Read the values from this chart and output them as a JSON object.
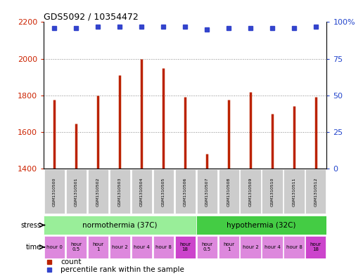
{
  "title": "GDS5092 / 10354472",
  "samples": [
    "GSM1310500",
    "GSM1310501",
    "GSM1310502",
    "GSM1310503",
    "GSM1310504",
    "GSM1310505",
    "GSM1310506",
    "GSM1310507",
    "GSM1310508",
    "GSM1310509",
    "GSM1310510",
    "GSM1310511",
    "GSM1310512"
  ],
  "counts": [
    1775,
    1645,
    1800,
    1910,
    2000,
    1950,
    1790,
    1480,
    1775,
    1820,
    1700,
    1740,
    1790
  ],
  "percentiles": [
    96,
    96,
    97,
    97,
    97,
    97,
    97,
    95,
    96,
    96,
    96,
    96,
    97
  ],
  "ylim_left": [
    1400,
    2200
  ],
  "ylim_right": [
    0,
    100
  ],
  "yticks_left": [
    1400,
    1600,
    1800,
    2000,
    2200
  ],
  "yticks_right": [
    0,
    25,
    50,
    75,
    100
  ],
  "bar_color": "#bb2200",
  "dot_color": "#3344cc",
  "stress_norm": {
    "label": "normothermia (37C)",
    "color": "#99ee99",
    "ncols": 7
  },
  "stress_hypo": {
    "label": "hypothermia (32C)",
    "color": "#44cc44",
    "ncols": 6
  },
  "time_labels": [
    "hour 0",
    "hour\n0.5",
    "hour\n1",
    "hour 2",
    "hour 4",
    "hour 8",
    "hour\n18",
    "hour\n0.5",
    "hour\n1",
    "hour 2",
    "hour 4",
    "hour 8",
    "hour\n18"
  ],
  "time_colors_light": "#dd88dd",
  "time_colors_dark": "#cc44cc",
  "time_dark_indices": [
    6,
    12
  ],
  "legend_count_color": "#bb2200",
  "legend_dot_color": "#3344cc",
  "bg_plot": "#ffffff",
  "grid_color": "#888888",
  "tick_color_left": "#cc2200",
  "tick_color_right": "#2244cc",
  "sample_bg": "#cccccc"
}
